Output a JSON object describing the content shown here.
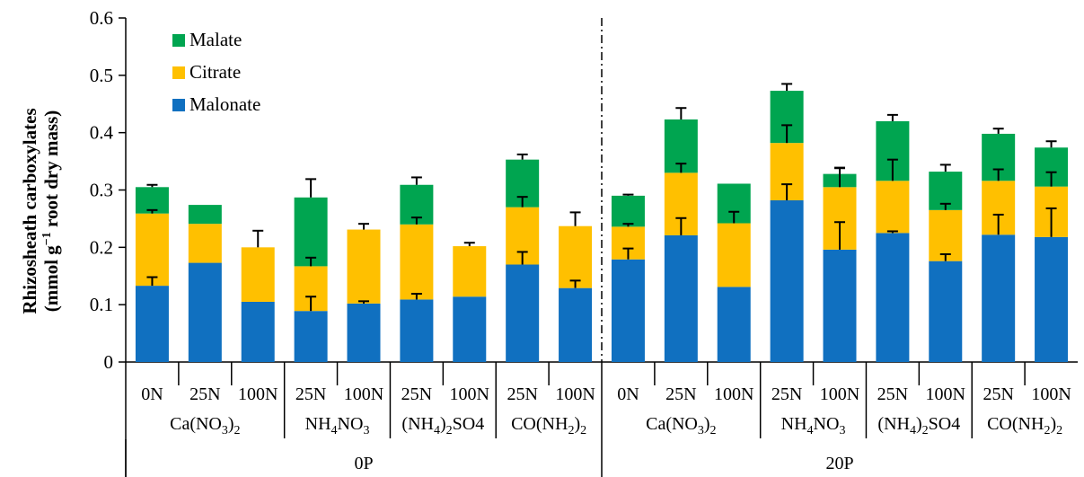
{
  "chart_data": {
    "type": "bar",
    "stacked": true,
    "ylabel_line1": "Rhizosheath carboxylates",
    "ylabel_line2_pre": "(mmol g",
    "ylabel_line2_sup": "−1",
    "ylabel_line2_post": " root dry mass)",
    "ylim": [
      0,
      0.6
    ],
    "yticks": [
      "0",
      "0.1",
      "0.2",
      "0.3",
      "0.4",
      "0.5",
      "0.6"
    ],
    "legend_position": "top-left",
    "colors": {
      "Malonate": "#1070c0",
      "Citrate": "#ffc000",
      "Malate": "#00a550"
    },
    "legend": [
      {
        "name": "Malate"
      },
      {
        "name": "Citrate"
      },
      {
        "name": "Malonate"
      }
    ],
    "p_levels": [
      {
        "label": "0P",
        "groups": [
          {
            "base": "Ca(NO",
            "sub1": "3",
            "mid": ")",
            "sub2": "2",
            "tail": "",
            "doses": [
              "0N",
              "25N",
              "100N"
            ]
          },
          {
            "base": "NH",
            "sub1": "4",
            "mid": "NO",
            "sub2": "3",
            "tail": "",
            "doses": [
              "25N",
              "100N"
            ]
          },
          {
            "base": "(NH",
            "sub1": "4",
            "mid": ")",
            "sub2": "2",
            "tail": "SO4",
            "doses": [
              "25N",
              "100N"
            ]
          },
          {
            "base": "CO(NH",
            "sub1": "2",
            "mid": ")",
            "sub2": "2",
            "tail": "",
            "doses": [
              "25N",
              "100N"
            ]
          }
        ]
      },
      {
        "label": "20P",
        "groups": [
          {
            "base": "Ca(NO",
            "sub1": "3",
            "mid": ")",
            "sub2": "2",
            "tail": "",
            "doses": [
              "0N",
              "25N",
              "100N"
            ]
          },
          {
            "base": "NH",
            "sub1": "4",
            "mid": "NO",
            "sub2": "3",
            "tail": "",
            "doses": [
              "25N",
              "100N"
            ]
          },
          {
            "base": "(NH",
            "sub1": "4",
            "mid": ")",
            "sub2": "2",
            "tail": "SO4",
            "doses": [
              "25N",
              "100N"
            ]
          },
          {
            "base": "CO(NH",
            "sub1": "2",
            "mid": ")",
            "sub2": "2",
            "tail": "",
            "doses": [
              "25N",
              "100N"
            ]
          }
        ]
      }
    ],
    "series": [
      {
        "name": "Malonate",
        "values": [
          0.133,
          0.173,
          0.105,
          0.089,
          0.102,
          0.109,
          0.114,
          0.17,
          0.129,
          0.179,
          0.221,
          0.131,
          0.282,
          0.196,
          0.225,
          0.176,
          0.222,
          0.218
        ]
      },
      {
        "name": "Citrate",
        "values": [
          0.126,
          0.068,
          0.095,
          0.078,
          0.129,
          0.131,
          0.088,
          0.1,
          0.108,
          0.057,
          0.109,
          0.111,
          0.1,
          0.109,
          0.091,
          0.089,
          0.094,
          0.088
        ]
      },
      {
        "name": "Malate",
        "values": [
          0.046,
          0.033,
          0,
          0.12,
          0,
          0.069,
          0,
          0.083,
          0,
          0.054,
          0.093,
          0.069,
          0.091,
          0.023,
          0.104,
          0.067,
          0.082,
          0.068
        ]
      }
    ],
    "errors": {
      "Malonate": [
        0.015,
        0,
        0,
        0.025,
        0.004,
        0.01,
        0,
        0.022,
        0.013,
        0.019,
        0.03,
        0,
        0.028,
        0.048,
        0.003,
        0.012,
        0.035,
        0.05
      ],
      "Citrate": [
        0.006,
        0,
        0.029,
        0.015,
        0.01,
        0.012,
        0.006,
        0.018,
        0.024,
        0.005,
        0.016,
        0.02,
        0.031,
        0.034,
        0.037,
        0.011,
        0.02,
        0.025
      ],
      "Malate": [
        0.004,
        0,
        0,
        0.032,
        0,
        0.013,
        0,
        0.009,
        0,
        0.002,
        0.02,
        0,
        0.012,
        0.01,
        0.011,
        0.012,
        0.009,
        0.011
      ]
    }
  }
}
